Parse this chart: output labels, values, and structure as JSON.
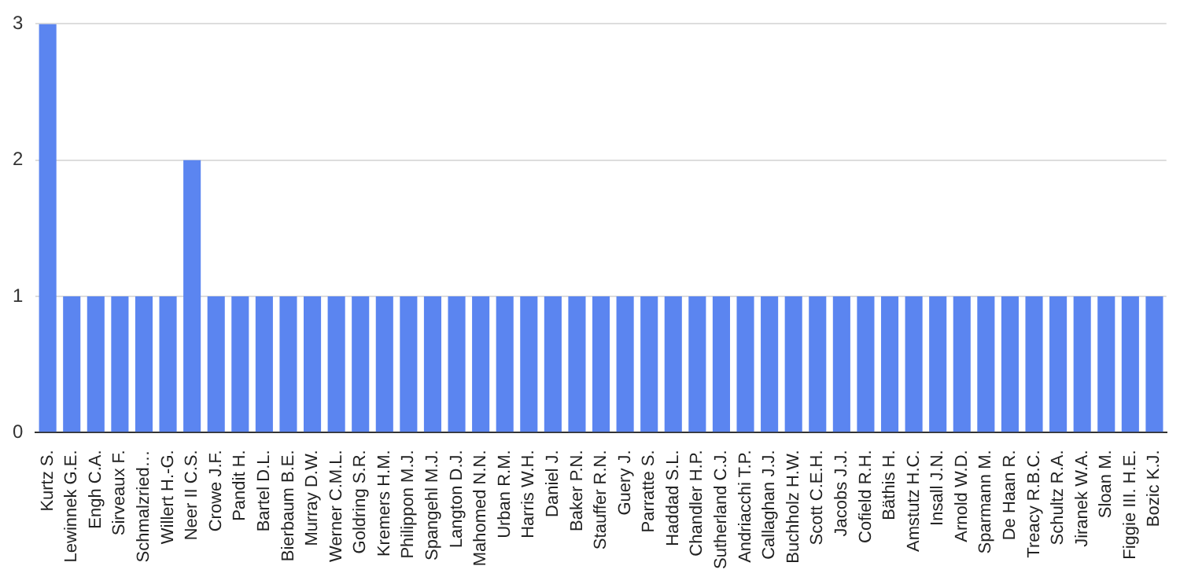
{
  "chart_data": {
    "type": "bar",
    "categories": [
      "Kurtz S.",
      "Lewinnek G.E.",
      "Engh C.A.",
      "Sirveaux F.",
      "Schmalzried…",
      "Willert H.-G.",
      "Neer II C.S.",
      "Crowe J.F.",
      "Pandit H.",
      "Bartel D.L.",
      "Bierbaum B.E.",
      "Murray D.W.",
      "Werner C.M.L.",
      "Goldring S.R.",
      "Kremers H.M.",
      "Philippon M.J.",
      "Spangehl M.J.",
      "Langton D.J.",
      "Mahomed N.N.",
      "Urban R.M.",
      "Harris W.H.",
      "Daniel J.",
      "Baker P.N.",
      "Stauffer R.N.",
      "Guery J.",
      "Parratte S.",
      "Haddad S.L.",
      "Chandler H.P.",
      "Sutherland C.J.",
      "Andriacchi T.P.",
      "Callaghan J.J.",
      "Buchholz H.W.",
      "Scott C.E.H.",
      "Jacobs J.J.",
      "Cofield R.H.",
      "Bäthis H.",
      "Amstutz H.C.",
      "Insall J.N.",
      "Arnold W.D.",
      "Sparmann M.",
      "De Haan R.",
      "Treacy R.B.C.",
      "Schultz R.A.",
      "Jiranek W.A.",
      "Sloan M.",
      "Figgie III. H.E.",
      "Bozic K.J."
    ],
    "values": [
      3,
      1,
      1,
      1,
      1,
      1,
      2,
      1,
      1,
      1,
      1,
      1,
      1,
      1,
      1,
      1,
      1,
      1,
      1,
      1,
      1,
      1,
      1,
      1,
      1,
      1,
      1,
      1,
      1,
      1,
      1,
      1,
      1,
      1,
      1,
      1,
      1,
      1,
      1,
      1,
      1,
      1,
      1,
      1,
      1,
      1,
      1
    ],
    "color": "#5b85f0",
    "ylim": [
      0,
      3
    ],
    "yticks": [
      0,
      1,
      2,
      3
    ],
    "grid": "y",
    "legend": false
  }
}
